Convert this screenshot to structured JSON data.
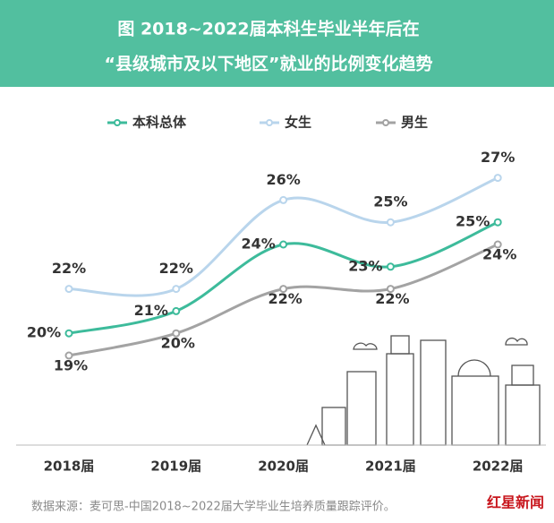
{
  "chart_data": {
    "type": "line",
    "title": "图  2018~2022届本科生毕业半年后在",
    "subtitle": "“县级城市及以下地区”就业的比例变化趋势",
    "categories": [
      "2018届",
      "2019届",
      "2020届",
      "2021届",
      "2022届"
    ],
    "series": [
      {
        "name": "本科总体",
        "color": "#3dbb9b",
        "values": [
          20,
          21,
          24,
          23,
          25
        ],
        "value_labels": [
          "20%",
          "21%",
          "24%",
          "23%",
          "25%"
        ]
      },
      {
        "name": "女生",
        "color": "#b9d5ec",
        "values": [
          22,
          22,
          26,
          25,
          27
        ],
        "value_labels": [
          "22%",
          "22%",
          "26%",
          "25%",
          "27%"
        ]
      },
      {
        "name": "男生",
        "color": "#a3a3a3",
        "values": [
          19,
          20,
          22,
          22,
          24
        ],
        "value_labels": [
          "19%",
          "20%",
          "22%",
          "22%",
          "24%"
        ]
      }
    ],
    "source": "数据来源：麦可思-中国2018~2022届大学毕业生培养质量跟踪评价。",
    "watermark": "红星新闻"
  }
}
